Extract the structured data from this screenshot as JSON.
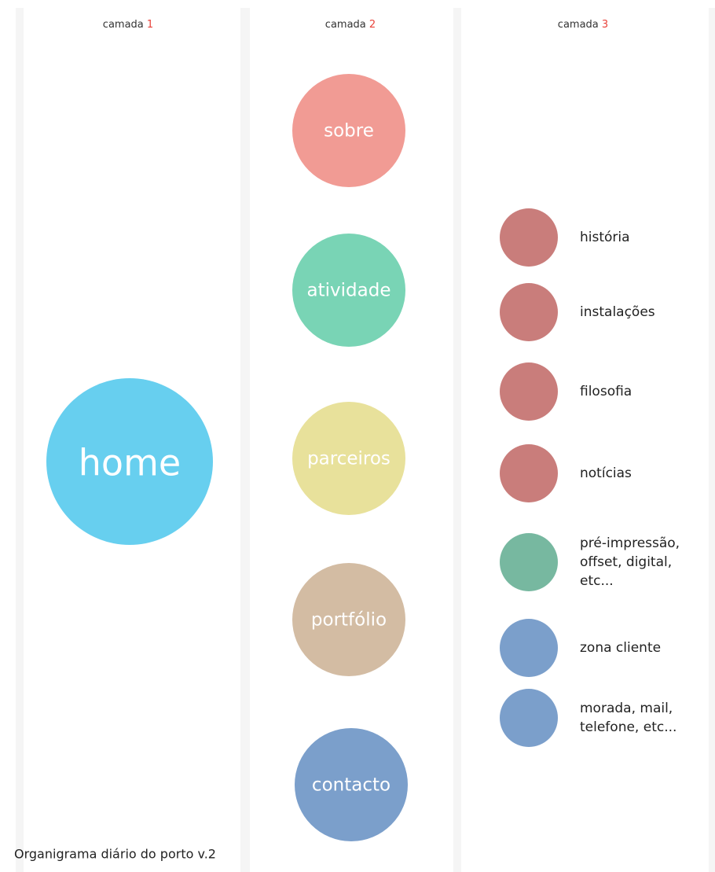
{
  "header": {
    "columns": [
      {
        "label": "camada",
        "number": "1"
      },
      {
        "label": "camada",
        "number": "2"
      },
      {
        "label": "camada",
        "number": "3"
      }
    ]
  },
  "layer1": [
    {
      "label": "home",
      "color": "#67cfef"
    }
  ],
  "layer2": [
    {
      "label": "sobre",
      "color": "#f19b94"
    },
    {
      "label": "atividade",
      "color": "#79d4b5"
    },
    {
      "label": "parceiros",
      "color": "#e8e19b"
    },
    {
      "label": "portfólio",
      "color": "#d3bca3"
    },
    {
      "label": "contacto",
      "color": "#7b9fcb"
    }
  ],
  "layer3": [
    {
      "lines": [
        "história"
      ],
      "color": "#c97d7b"
    },
    {
      "lines": [
        "instalações"
      ],
      "color": "#c97d7b"
    },
    {
      "lines": [
        "filosofia"
      ],
      "color": "#c97d7b"
    },
    {
      "lines": [
        "notícias"
      ],
      "color": "#c97d7b"
    },
    {
      "lines": [
        "pré-impressão,",
        "offset, digital,",
        "etc..."
      ],
      "color": "#77b8a0"
    },
    {
      "lines": [
        "zona cliente"
      ],
      "color": "#7b9fcb"
    },
    {
      "lines": [
        "morada, mail,",
        "telefone, etc..."
      ],
      "color": "#7b9fcb"
    }
  ],
  "footer": "Organigrama diário do porto v.2"
}
